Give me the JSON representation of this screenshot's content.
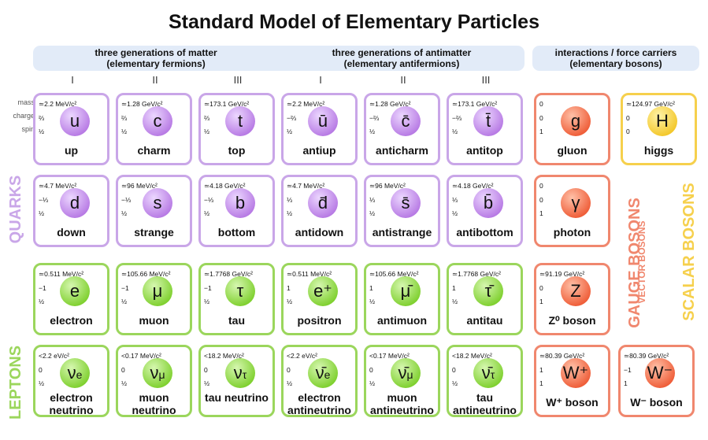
{
  "title": "Standard Model of Elementary Particles",
  "headers": {
    "matter": [
      "three generations of matter",
      "(elementary fermions)"
    ],
    "antimatter": [
      "three generations of antimatter",
      "(elementary antifermions)"
    ],
    "bosons": [
      "interactions / force carriers",
      "(elementary bosons)"
    ]
  },
  "generations": [
    "I",
    "II",
    "III",
    "I",
    "II",
    "III"
  ],
  "row_labels": {
    "mass": "mass",
    "charge": "charge",
    "spin": "spin"
  },
  "side_labels": {
    "quarks": "QUARKS",
    "leptons": "LEPTONS",
    "gauge": "GAUGE BOSONS",
    "vector": "VECTOR BOSONS",
    "scalar": "SCALAR BOSONS"
  },
  "colors": {
    "quark": "#c9a6e8",
    "lepton": "#9bd65c",
    "gauge": "#f0876e",
    "scalar": "#f6d04c",
    "header_bg": "#e2ebf8"
  },
  "cards": [
    {
      "mass": "≃2.2 MeV/c²",
      "charge": "⅔",
      "spin": "½",
      "symbol": "u",
      "name": "up"
    },
    {
      "mass": "≃1.28 GeV/c²",
      "charge": "⅔",
      "spin": "½",
      "symbol": "c",
      "name": "charm"
    },
    {
      "mass": "≃173.1 GeV/c²",
      "charge": "⅔",
      "spin": "½",
      "symbol": "t",
      "name": "top"
    },
    {
      "mass": "≃2.2 MeV/c²",
      "charge": "−⅔",
      "spin": "½",
      "symbol": "ū",
      "name": "antiup"
    },
    {
      "mass": "≃1.28 GeV/c²",
      "charge": "−⅔",
      "spin": "½",
      "symbol": "c̄",
      "name": "anticharm"
    },
    {
      "mass": "≃173.1 GeV/c²",
      "charge": "−⅔",
      "spin": "½",
      "symbol": "t̄",
      "name": "antitop"
    },
    {
      "mass": "0",
      "charge": "0",
      "spin": "1",
      "symbol": "g",
      "name": "gluon"
    },
    {
      "mass": "≃124.97 GeV/c²",
      "charge": "0",
      "spin": "0",
      "symbol": "H",
      "name": "higgs"
    },
    {
      "mass": "≃4.7 MeV/c²",
      "charge": "−⅓",
      "spin": "½",
      "symbol": "d",
      "name": "down"
    },
    {
      "mass": "≃96 MeV/c²",
      "charge": "−⅓",
      "spin": "½",
      "symbol": "s",
      "name": "strange"
    },
    {
      "mass": "≃4.18 GeV/c²",
      "charge": "−⅓",
      "spin": "½",
      "symbol": "b",
      "name": "bottom"
    },
    {
      "mass": "≃4.7 MeV/c²",
      "charge": "⅓",
      "spin": "½",
      "symbol": "d̄",
      "name": "antidown"
    },
    {
      "mass": "≃96 MeV/c²",
      "charge": "⅓",
      "spin": "½",
      "symbol": "s̄",
      "name": "antistrange"
    },
    {
      "mass": "≃4.18 GeV/c²",
      "charge": "⅓",
      "spin": "½",
      "symbol": "b̄",
      "name": "antibottom"
    },
    {
      "mass": "0",
      "charge": "0",
      "spin": "1",
      "symbol": "γ",
      "name": "photon"
    },
    {
      "mass": "≃0.511 MeV/c²",
      "charge": "−1",
      "spin": "½",
      "symbol": "e",
      "name": "electron"
    },
    {
      "mass": "≃105.66 MeV/c²",
      "charge": "−1",
      "spin": "½",
      "symbol": "μ",
      "name": "muon"
    },
    {
      "mass": "≃1.7768 GeV/c²",
      "charge": "−1",
      "spin": "½",
      "symbol": "τ",
      "name": "tau"
    },
    {
      "mass": "≃0.511 MeV/c²",
      "charge": "1",
      "spin": "½",
      "symbol": "e⁺",
      "name": "positron"
    },
    {
      "mass": "≃105.66 MeV/c²",
      "charge": "1",
      "spin": "½",
      "symbol": "μ̄",
      "name": "antimuon"
    },
    {
      "mass": "≃1.7768 GeV/c²",
      "charge": "1",
      "spin": "½",
      "symbol": "τ̄",
      "name": "antitau"
    },
    {
      "mass": "≃91.19 GeV/c²",
      "charge": "0",
      "spin": "1",
      "symbol": "Z",
      "name": "Z⁰ boson"
    },
    {
      "mass": "<2.2 eV/c²",
      "charge": "0",
      "spin": "½",
      "symbol": "ν",
      "sub": "e",
      "name": "electron neutrino"
    },
    {
      "mass": "<0.17 MeV/c²",
      "charge": "0",
      "spin": "½",
      "symbol": "ν",
      "sub": "μ",
      "name": "muon neutrino"
    },
    {
      "mass": "<18.2 MeV/c²",
      "charge": "0",
      "spin": "½",
      "symbol": "ν",
      "sub": "τ",
      "name": "tau neutrino"
    },
    {
      "mass": "<2.2 eV/c²",
      "charge": "0",
      "spin": "½",
      "symbol": "ν̄",
      "sub": "e",
      "name": "electron antineutrino"
    },
    {
      "mass": "<0.17 MeV/c²",
      "charge": "0",
      "spin": "½",
      "symbol": "ν̄",
      "sub": "μ",
      "name": "muon antineutrino"
    },
    {
      "mass": "<18.2 MeV/c²",
      "charge": "0",
      "spin": "½",
      "symbol": "ν̄",
      "sub": "τ",
      "name": "tau antineutrino"
    },
    {
      "mass": "≃80.39 GeV/c²",
      "charge": "1",
      "spin": "1",
      "symbol": "W⁺",
      "name": "W⁺ boson"
    },
    {
      "mass": "≃80.39 GeV/c²",
      "charge": "−1",
      "spin": "1",
      "symbol": "W⁻",
      "name": "W⁻ boson"
    }
  ]
}
